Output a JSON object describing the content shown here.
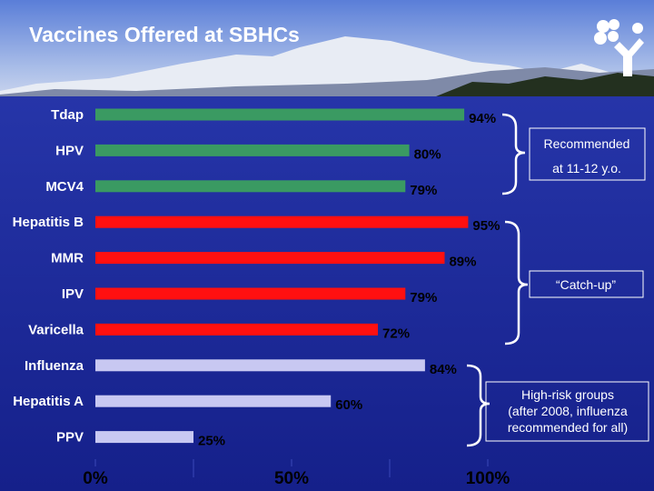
{
  "chart_data": {
    "type": "bar",
    "orientation": "horizontal",
    "title": "Vaccines Offered at SBHCs",
    "categories": [
      "Tdap",
      "HPV",
      "MCV4",
      "Hepatitis B",
      "MMR",
      "IPV",
      "Varicella",
      "Influenza",
      "Hepatitis A",
      "PPV"
    ],
    "values": [
      94,
      80,
      79,
      95,
      89,
      79,
      72,
      84,
      60,
      25
    ],
    "value_labels": [
      "94%",
      "80%",
      "79%",
      "95%",
      "89%",
      "79%",
      "72%",
      "84%",
      "60%",
      "25%"
    ],
    "colors": [
      "#3a9a62",
      "#3a9a62",
      "#3a9a62",
      "#ff1010",
      "#ff1010",
      "#ff1010",
      "#ff1010",
      "#c8c8f2",
      "#c8c8f2",
      "#c8c8f2"
    ],
    "xlim": [
      0,
      100
    ],
    "xticks": [
      {
        "value": 0,
        "label": "0%"
      },
      {
        "value": 50,
        "label": "50%"
      },
      {
        "value": 100,
        "label": "100%"
      }
    ],
    "xminorticks": [
      25,
      75
    ],
    "groups": [
      {
        "label": [
          "Recommended",
          "at 11-12 y.o."
        ]
      },
      {
        "label": [
          "“Catch-up”"
        ]
      },
      {
        "label": [
          "High-risk groups",
          "(after 2008, influenza",
          "recommended for all)"
        ]
      }
    ]
  }
}
